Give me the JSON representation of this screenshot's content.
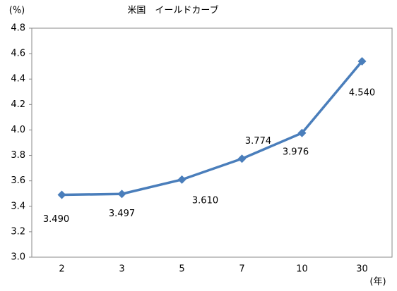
{
  "chart_data": {
    "type": "line",
    "title": "米国　イールドカーブ",
    "y_label": "(%)",
    "x_label": "(年)",
    "categories": [
      "2",
      "3",
      "5",
      "7",
      "10",
      "30"
    ],
    "series": [
      {
        "name": "米国",
        "color": "#4a7ebb",
        "values": [
          3.49,
          3.497,
          3.61,
          3.774,
          3.976,
          4.54
        ],
        "value_labels": [
          "3.490",
          "3.497",
          "3.610",
          "3.774",
          "3.976",
          "4.540"
        ]
      }
    ],
    "ylim": [
      3.0,
      4.8
    ],
    "yticks": [
      {
        "value": 3.0,
        "label": "3.0"
      },
      3.2,
      3.4,
      3.6,
      3.8,
      {
        "value": 4.0,
        "label": "4.0"
      },
      4.2,
      4.4,
      4.6,
      4.8
    ],
    "grid": false
  }
}
